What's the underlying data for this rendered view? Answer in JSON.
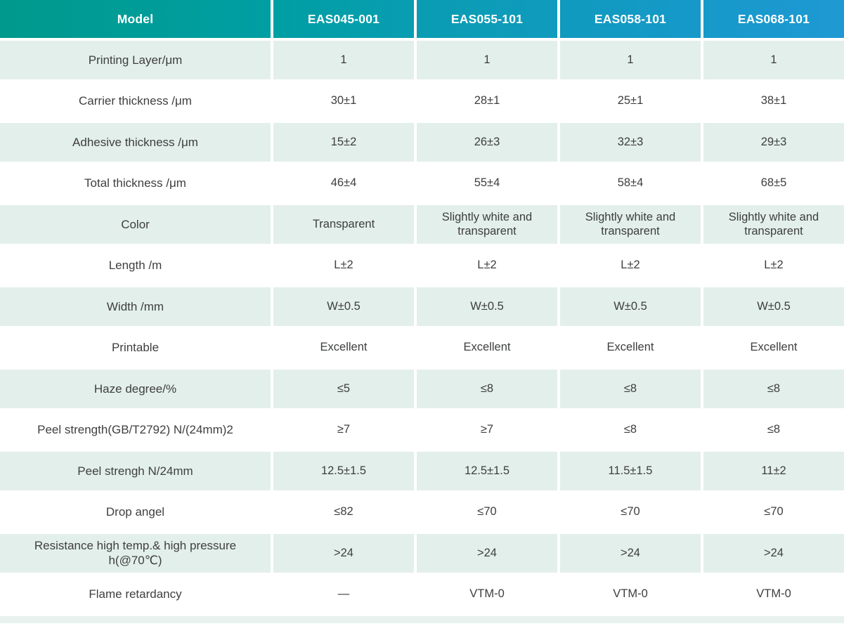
{
  "colors": {
    "header_gradient_left": "#00998c",
    "header_gradient_mid": "#0c9cb6",
    "header_gradient_right": "#1f99d3",
    "header_text": "#ffffff",
    "row_alt_background": "#e3efeb",
    "footer_strip": "#e8f1ee",
    "body_text": "#3d3e3e"
  },
  "table": {
    "header": {
      "model_label": "Model",
      "columns": [
        "EAS045-001",
        "EAS055-101",
        "EAS058-101",
        "EAS068-101"
      ]
    },
    "rows": [
      {
        "label": "Printing Layer/μm",
        "values": [
          "1",
          "1",
          "1",
          "1"
        ]
      },
      {
        "label": "Carrier thickness /μm",
        "values": [
          "30±1",
          "28±1",
          "25±1",
          "38±1"
        ]
      },
      {
        "label": "Adhesive thickness /μm",
        "values": [
          "15±2",
          "26±3",
          "32±3",
          "29±3"
        ]
      },
      {
        "label": "Total thickness /μm",
        "values": [
          "46±4",
          "55±4",
          "58±4",
          "68±5"
        ]
      },
      {
        "label": "Color",
        "values": [
          "Transparent",
          "Slightly white and transparent",
          "Slightly white and transparent",
          "Slightly white and transparent"
        ]
      },
      {
        "label": "Length /m",
        "values": [
          "L±2",
          "L±2",
          "L±2",
          "L±2"
        ]
      },
      {
        "label": "Width /mm",
        "values": [
          "W±0.5",
          "W±0.5",
          "W±0.5",
          "W±0.5"
        ]
      },
      {
        "label": "Printable",
        "values": [
          "Excellent",
          "Excellent",
          "Excellent",
          "Excellent"
        ]
      },
      {
        "label": "Haze degree/%",
        "values": [
          "≤5",
          "≤8",
          "≤8",
          "≤8"
        ]
      },
      {
        "label": "Peel strength(GB/T2792)  N/(24mm)2",
        "values": [
          "≥7",
          "≥7",
          "≤8",
          "≤8"
        ]
      },
      {
        "label": "Peel strengh N/24mm",
        "values": [
          "12.5±1.5",
          "12.5±1.5",
          "11.5±1.5",
          "11±2"
        ]
      },
      {
        "label": "Drop angel",
        "values": [
          "≤82",
          "≤70",
          "≤70",
          "≤70"
        ]
      },
      {
        "label": "Resistance high temp.& high pressure h(@70℃)",
        "values": [
          ">24",
          ">24",
          ">24",
          ">24"
        ]
      },
      {
        "label": "Flame retardancy",
        "values": [
          "—",
          "VTM-0",
          "VTM-0",
          "VTM-0"
        ]
      }
    ]
  }
}
